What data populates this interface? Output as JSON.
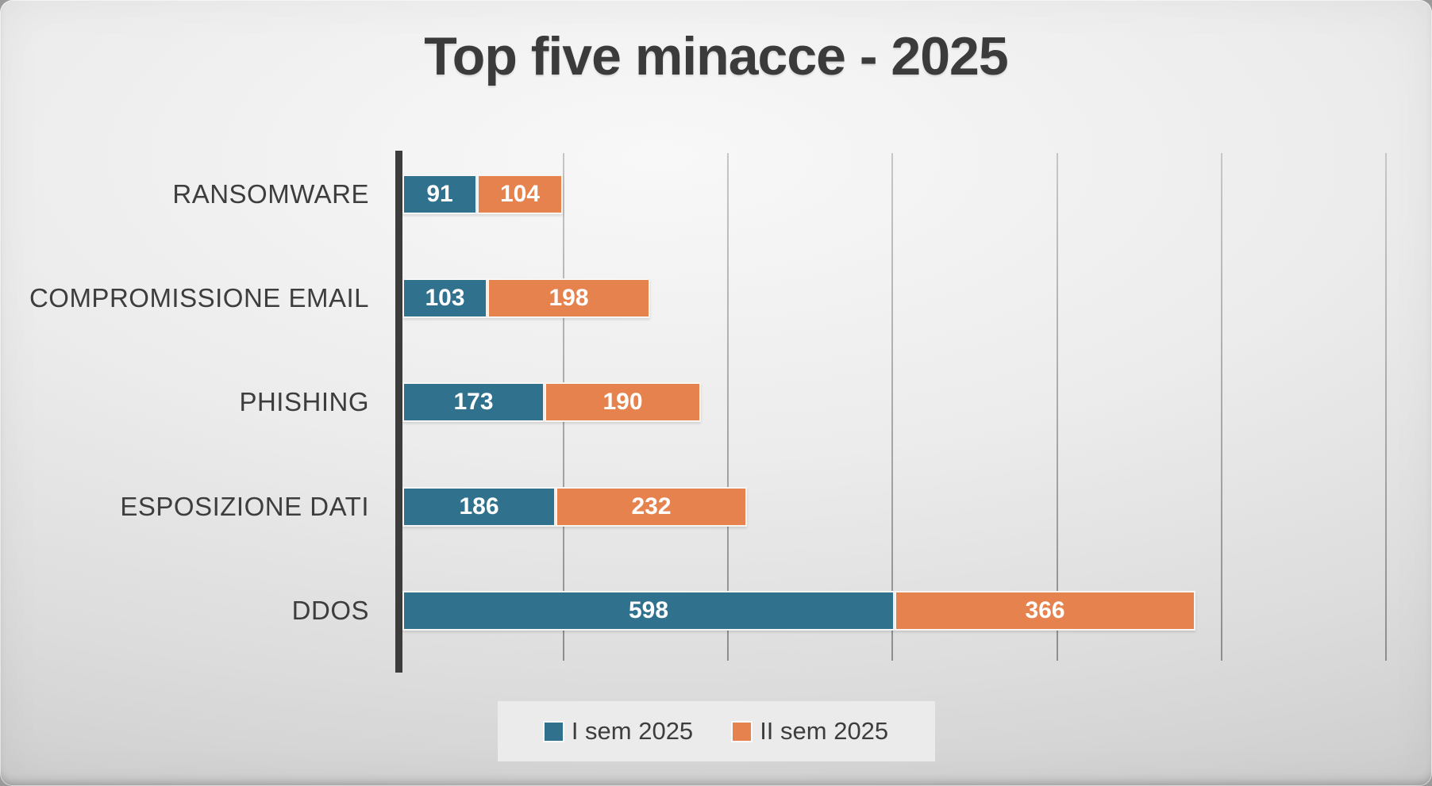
{
  "title": "Top five minacce - 2025",
  "chart_data": {
    "type": "bar",
    "variant": "horizontal_stacked",
    "title": "Top five minacce - 2025",
    "categories": [
      "RANSOMWARE",
      "COMPROMISSIONE EMAIL",
      "PHISHING",
      "ESPOSIZIONE DATI",
      "DDOS"
    ],
    "series": [
      {
        "name": "I sem 2025",
        "color": "#30718E",
        "values": [
          91,
          103,
          173,
          186,
          598
        ]
      },
      {
        "name": "II sem 2025",
        "color": "#E6824E",
        "values": [
          104,
          198,
          190,
          232,
          366
        ]
      }
    ],
    "x_axis": {
      "min": 0,
      "max": 1200,
      "gridline_step": 200,
      "tick_labels_visible": false
    },
    "grid": "vertical-gridlines",
    "legend_position": "bottom-center",
    "data_labels": {
      "position": "inside-center",
      "color": "#FFFFFF"
    }
  },
  "colors": {
    "series1": "#30718E",
    "series2": "#E6824E",
    "title_text": "#3B3B3B",
    "category_label_text": "#3D3D3D",
    "axis_line": "#3C3C3C",
    "gridline": "#9E9E9E",
    "background_center": "#F7F7F7",
    "background_edge": "#C7C7C7",
    "legend_background": "#EBEBEB",
    "data_label_text": "#FFFFFF"
  }
}
